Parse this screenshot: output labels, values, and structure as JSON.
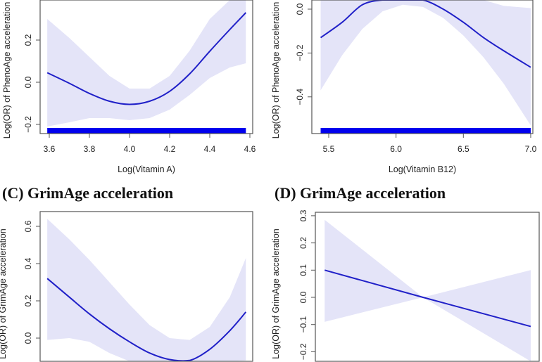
{
  "chart_data": [
    {
      "id": "A",
      "type": "line",
      "title": "",
      "xlabel": "Log(Vitamin A)",
      "ylabel": "Log(OR) of PhenoAge acceleration",
      "xticks": [
        3.6,
        3.8,
        4.0,
        4.2,
        4.4,
        4.6
      ],
      "xtick_labels": [
        "3.6",
        "3.8",
        "4.0",
        "4.2",
        "4.4",
        "4.6"
      ],
      "yticks": [
        -0.2,
        0.0,
        0.2
      ],
      "ytick_labels": [
        "−0.2",
        "0.0",
        "0.2"
      ],
      "x": [
        3.59,
        3.7,
        3.8,
        3.9,
        4.0,
        4.1,
        4.2,
        4.3,
        4.4,
        4.5,
        4.58
      ],
      "fit": [
        0.045,
        -0.005,
        -0.053,
        -0.09,
        -0.105,
        -0.09,
        -0.043,
        0.04,
        0.147,
        0.25,
        0.33
      ],
      "ci_upper": [
        0.3,
        0.21,
        0.12,
        0.03,
        -0.03,
        -0.03,
        0.03,
        0.15,
        0.3,
        0.45,
        0.55
      ],
      "ci_lower": [
        -0.21,
        -0.19,
        -0.17,
        -0.17,
        -0.18,
        -0.17,
        -0.13,
        -0.06,
        0.02,
        0.07,
        0.09
      ],
      "rug_range": [
        3.59,
        4.58
      ],
      "colors": {
        "line": "#2020c8",
        "band": "#e4e4f8",
        "rug": "#0000ee"
      }
    },
    {
      "id": "B",
      "type": "line",
      "title": "",
      "xlabel": "Log(Vitamin B12)",
      "ylabel": "Log(OR) of PhenoAge acceleration",
      "xticks": [
        5.5,
        6.0,
        6.5,
        7.0
      ],
      "xtick_labels": [
        "5.5",
        "6.0",
        "6.5",
        "7.0"
      ],
      "yticks": [
        -0.4,
        -0.2,
        0.0
      ],
      "ytick_labels": [
        "−0.4",
        "−0.2",
        "0.0"
      ],
      "x": [
        5.44,
        5.6,
        5.75,
        5.9,
        6.05,
        6.2,
        6.35,
        6.5,
        6.65,
        6.8,
        7.0
      ],
      "fit": [
        -0.13,
        -0.06,
        0.02,
        0.08,
        0.1,
        0.08,
        0.0,
        -0.06,
        -0.13,
        -0.19,
        -0.265
      ],
      "ci_upper": [
        0.12,
        0.2,
        0.3,
        0.4,
        0.45,
        0.4,
        0.3,
        0.15,
        0.05,
        0.015,
        0.005
      ],
      "ci_lower": [
        -0.37,
        -0.21,
        -0.09,
        -0.01,
        0.02,
        0.01,
        -0.04,
        -0.12,
        -0.22,
        -0.34,
        -0.53
      ],
      "rug_range": [
        5.44,
        7.0
      ],
      "colors": {
        "line": "#2020c8",
        "band": "#e4e4f8",
        "rug": "#0000ee"
      }
    },
    {
      "id": "C",
      "type": "line",
      "title": "(C) GrimAge acceleration",
      "xlabel": "",
      "ylabel": "Log(OR) of GrimAge acceleration",
      "xticks": [],
      "xtick_labels": [],
      "yticks": [
        0.0,
        0.2,
        0.4,
        0.6
      ],
      "ytick_labels": [
        "0.0",
        "0.2",
        "0.4",
        "0.6"
      ],
      "x": [
        3.59,
        3.7,
        3.8,
        3.9,
        4.0,
        4.1,
        4.2,
        4.3,
        4.4,
        4.5,
        4.58
      ],
      "fit": [
        0.32,
        0.22,
        0.13,
        0.05,
        -0.02,
        -0.08,
        -0.115,
        -0.12,
        -0.06,
        0.04,
        0.14
      ],
      "ci_upper": [
        0.64,
        0.53,
        0.42,
        0.3,
        0.18,
        0.07,
        0.0,
        -0.01,
        0.06,
        0.22,
        0.43
      ],
      "ci_lower": [
        -0.01,
        0.0,
        -0.02,
        -0.08,
        -0.15,
        -0.22,
        -0.26,
        -0.27,
        -0.23,
        -0.16,
        -0.12
      ],
      "colors": {
        "line": "#2020c8",
        "band": "#e4e4f8"
      }
    },
    {
      "id": "D",
      "type": "line",
      "title": "(D) GrimAge acceleration",
      "xlabel": "",
      "ylabel": "Log(OR) of GrimAge acceleration",
      "xticks": [],
      "xtick_labels": [],
      "yticks": [
        -0.2,
        -0.1,
        0.0,
        0.1,
        0.2,
        0.3
      ],
      "ytick_labels": [
        "−0.2",
        "−0.1",
        "0.0",
        "0.1",
        "0.2",
        "0.3"
      ],
      "x": [
        5.47,
        6.2,
        7.0
      ],
      "fit": [
        0.1,
        0.0,
        -0.107
      ],
      "ci_upper": [
        0.285,
        0.0,
        0.1
      ],
      "ci_lower": [
        -0.09,
        0.0,
        -0.3
      ],
      "colors": {
        "line": "#2020c8",
        "band": "#e4e4f8"
      }
    }
  ]
}
